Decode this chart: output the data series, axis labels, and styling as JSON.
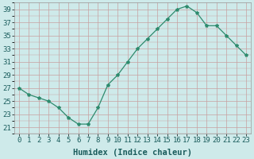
{
  "x": [
    0,
    1,
    2,
    3,
    4,
    5,
    6,
    7,
    8,
    9,
    10,
    11,
    12,
    13,
    14,
    15,
    16,
    17,
    18,
    19,
    20,
    21,
    22,
    23
  ],
  "y": [
    27,
    26,
    25.5,
    25,
    24,
    22.5,
    21.5,
    21.5,
    24,
    27.5,
    29,
    31,
    33,
    34.5,
    36,
    37.5,
    39,
    39.5,
    38.5,
    36.5,
    36.5,
    35,
    33.5,
    32
  ],
  "line_color": "#2e8b6e",
  "marker": "*",
  "marker_size": 3,
  "bg_color": "#ceeaea",
  "grid_color": "#c8a0a0",
  "xlabel": "Humidex (Indice chaleur)",
  "xlim": [
    -0.5,
    23.5
  ],
  "ylim": [
    20,
    40
  ],
  "yticks": [
    21,
    23,
    25,
    27,
    29,
    31,
    33,
    35,
    37,
    39
  ],
  "xtick_labels": [
    "0",
    "1",
    "2",
    "3",
    "4",
    "5",
    "6",
    "7",
    "8",
    "9",
    "10",
    "11",
    "12",
    "13",
    "14",
    "15",
    "16",
    "17",
    "18",
    "19",
    "20",
    "21",
    "22",
    "23"
  ],
  "font_size": 6.5,
  "xlabel_fontsize": 7.5
}
